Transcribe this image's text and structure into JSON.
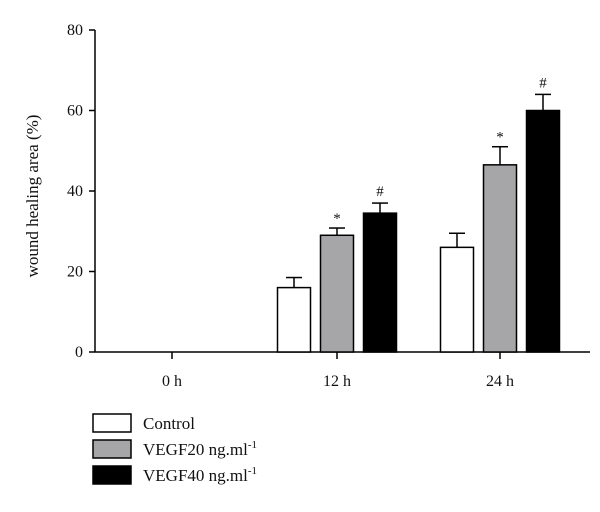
{
  "chart_data": {
    "type": "bar",
    "title": "",
    "ylabel": "wound healing area (%)",
    "xlabel": "",
    "ylim": [
      0,
      80
    ],
    "yticks": [
      "0",
      "20",
      "40",
      "60",
      "80"
    ],
    "categories": [
      "0 h",
      "12 h",
      "24 h"
    ],
    "grid": false,
    "legend_position": "bottom-left",
    "series": [
      {
        "name": "Control",
        "color": "#ffffff",
        "values": [
          0,
          16,
          26
        ],
        "errors": [
          0,
          2.5,
          3.5
        ],
        "markers": [
          "",
          "",
          ""
        ]
      },
      {
        "name": "VEGF20 ng.ml",
        "name_superscript": "-1",
        "color": "#a6a6a8",
        "values": [
          0,
          29,
          46.5
        ],
        "errors": [
          0,
          1.8,
          4.5
        ],
        "markers": [
          "",
          "*",
          "*"
        ]
      },
      {
        "name": "VEGF40 ng.ml",
        "name_superscript": "-1",
        "color": "#000000",
        "values": [
          0,
          34.5,
          60
        ],
        "errors": [
          0,
          2.5,
          4
        ],
        "markers": [
          "",
          "#",
          "#"
        ]
      }
    ]
  }
}
